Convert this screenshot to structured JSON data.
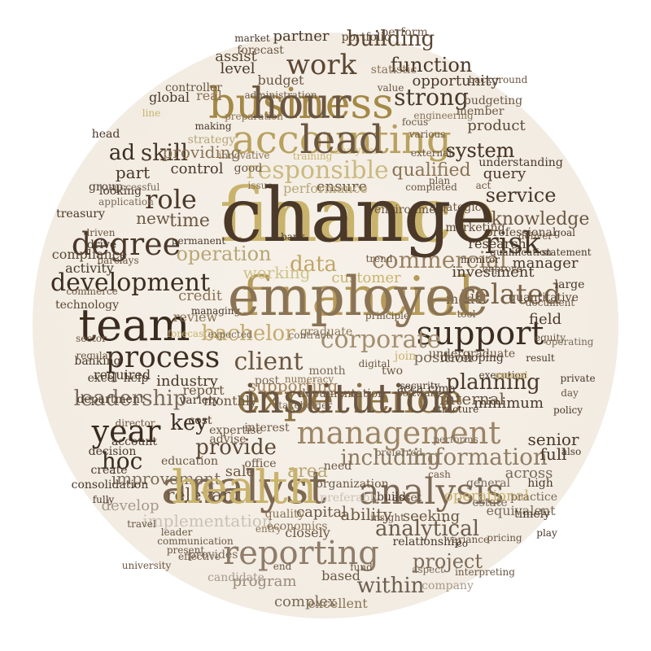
{
  "words": [
    {
      "text": "finance",
      "color": "#c9b36c"
    },
    {
      "text": "financial",
      "color": "#b59a5a"
    },
    {
      "text": "business",
      "color": "#a48945"
    },
    {
      "text": "accounting",
      "color": "#b8a15e"
    },
    {
      "text": "experience",
      "color": "#8c7346"
    },
    {
      "text": "analyst",
      "color": "#7d6850"
    },
    {
      "text": "analysis",
      "color": "#7c6a56"
    },
    {
      "text": "reporting",
      "color": "#8f7c69"
    },
    {
      "text": "management",
      "color": "#9c8466"
    },
    {
      "text": "support",
      "color": "#3b2d20"
    },
    {
      "text": "team",
      "color": "#3a2b1f"
    },
    {
      "text": "process",
      "color": "#3c2f22"
    },
    {
      "text": "degree",
      "color": "#4a3829"
    },
    {
      "text": "year",
      "color": "#3a2b1f"
    },
    {
      "text": "responsible",
      "color": "#cbb981"
    },
    {
      "text": "work",
      "color": "#5b4632"
    },
    {
      "text": "risk",
      "color": "#4a3829"
    },
    {
      "text": "role",
      "color": "#4a3829"
    },
    {
      "text": "skill",
      "color": "#4a3829"
    },
    {
      "text": "related",
      "color": "#7a6247"
    },
    {
      "text": "development",
      "color": "#3b2d20"
    },
    {
      "text": "client",
      "color": "#6b5641"
    },
    {
      "text": "corporate",
      "color": "#a38e6f"
    },
    {
      "text": "commercial",
      "color": "#9a8162"
    },
    {
      "text": "data",
      "color": "#c0a566"
    },
    {
      "text": "bachelor",
      "color": "#c3aa6e"
    },
    {
      "text": "information",
      "color": "#917d65"
    },
    {
      "text": "including",
      "color": "#8d7a60"
    },
    {
      "text": "leadership",
      "color": "#7b6a5a"
    },
    {
      "text": "planning",
      "color": "#4a3829"
    },
    {
      "text": "strong",
      "color": "#4a3829"
    },
    {
      "text": "system",
      "color": "#4a3829"
    },
    {
      "text": "service",
      "color": "#4a3829"
    },
    {
      "text": "operation",
      "color": "#b8a676"
    },
    {
      "text": "project",
      "color": "#7d6b58"
    },
    {
      "text": "within",
      "color": "#6d5e4f"
    },
    {
      "text": "analytical",
      "color": "#6d5c4a"
    },
    {
      "text": "provide",
      "color": "#5c4936"
    },
    {
      "text": "key",
      "color": "#3b2d20"
    },
    {
      "text": "hoc",
      "color": "#3b2d20"
    },
    {
      "text": "function",
      "color": "#4a3829"
    },
    {
      "text": "opportunity",
      "color": "#4a3829"
    },
    {
      "text": "building",
      "color": "#5b4632"
    },
    {
      "text": "qualified",
      "color": "#8a7354"
    },
    {
      "text": "knowledge",
      "color": "#6b5641"
    },
    {
      "text": "query",
      "color": "#4a3829"
    },
    {
      "text": "product",
      "color": "#5c4936"
    },
    {
      "text": "position",
      "color": "#7a6a57"
    },
    {
      "text": "implementation",
      "color": "#c9c1b5"
    },
    {
      "text": "program",
      "color": "#9a8a78"
    },
    {
      "text": "improvement",
      "color": "#7a6a57"
    },
    {
      "text": "relevant",
      "color": "#6b5641"
    },
    {
      "text": "internal",
      "color": "#6b5641"
    },
    {
      "text": "field",
      "color": "#4a3829"
    },
    {
      "text": "manager",
      "color": "#4a3829"
    },
    {
      "text": "minimum",
      "color": "#4a3829"
    },
    {
      "text": "supporting",
      "color": "#a3835f"
    },
    {
      "text": "providing",
      "color": "#8a7354"
    },
    {
      "text": "time",
      "color": "#6b5641"
    },
    {
      "text": "new",
      "color": "#6b5641"
    },
    {
      "text": "ad",
      "color": "#3b2d20"
    },
    {
      "text": "part",
      "color": "#4a3829"
    },
    {
      "text": "level",
      "color": "#4a3829"
    },
    {
      "text": "partner",
      "color": "#4a3829"
    },
    {
      "text": "portfolio",
      "color": "#5b4632"
    },
    {
      "text": "assist",
      "color": "#5b4632"
    },
    {
      "text": "real",
      "color": "#8a7354"
    },
    {
      "text": "forecast",
      "color": "#6b5641"
    },
    {
      "text": "global",
      "color": "#4a3829"
    },
    {
      "text": "control",
      "color": "#4a3829"
    },
    {
      "text": "ensure",
      "color": "#6b5641"
    },
    {
      "text": "full",
      "color": "#4a3829"
    },
    {
      "text": "across",
      "color": "#7a6a57"
    },
    {
      "text": "senior",
      "color": "#4a3829"
    },
    {
      "text": "complex",
      "color": "#7a6a57"
    },
    {
      "text": "company",
      "color": "#a8998a"
    },
    {
      "text": "ability",
      "color": "#6b5641"
    },
    {
      "text": "seeking",
      "color": "#6b5641"
    },
    {
      "text": "capital",
      "color": "#6b5641"
    },
    {
      "text": "closely",
      "color": "#6b5641"
    },
    {
      "text": "area",
      "color": "#b8a676"
    },
    {
      "text": "sale",
      "color": "#6b5641"
    },
    {
      "text": "credit",
      "color": "#8a7354"
    },
    {
      "text": "review",
      "color": "#8a7354"
    },
    {
      "text": "report",
      "color": "#6b5641"
    },
    {
      "text": "industry",
      "color": "#4a3829"
    },
    {
      "text": "activity",
      "color": "#4a3829"
    },
    {
      "text": "compliance",
      "color": "#5b4632"
    },
    {
      "text": "technology",
      "color": "#5b4632"
    },
    {
      "text": "working",
      "color": "#cfc28a"
    },
    {
      "text": "customer",
      "color": "#c9b36c"
    },
    {
      "text": "research",
      "color": "#4a3829"
    },
    {
      "text": "investment",
      "color": "#4a3829"
    },
    {
      "text": "model",
      "color": "#6b5641"
    },
    {
      "text": "quantitative",
      "color": "#5b4632"
    },
    {
      "text": "operational",
      "color": "#c9b36c"
    },
    {
      "text": "excellent",
      "color": "#8a7354"
    },
    {
      "text": "based",
      "color": "#6b5641"
    },
    {
      "text": "budget",
      "color": "#6b5641"
    },
    {
      "text": "administration",
      "color": "#6b5641"
    },
    {
      "text": "required",
      "color": "#4a3829"
    },
    {
      "text": "develop",
      "color": "#a8998a"
    },
    {
      "text": "account",
      "color": "#4a3829"
    },
    {
      "text": "department",
      "color": "#4a3829"
    },
    {
      "text": "treasury",
      "color": "#4a3829"
    },
    {
      "text": "graduate",
      "color": "#8a7354"
    },
    {
      "text": "strategic",
      "color": "#6b5641"
    },
    {
      "text": "economics",
      "color": "#8a7354"
    },
    {
      "text": "monthly",
      "color": "#6b5641"
    },
    {
      "text": "quality",
      "color": "#8a7354"
    },
    {
      "text": "cima",
      "color": "#4a3829"
    },
    {
      "text": "acca",
      "color": "#4a3829"
    },
    {
      "text": "equivalent",
      "color": "#7a6a57"
    },
    {
      "text": "relationship",
      "color": "#4a3829"
    },
    {
      "text": "system",
      "color": "#4a3829"
    },
    {
      "text": "performance",
      "color": "#b8a676"
    },
    {
      "text": "environment",
      "color": "#6b5641"
    },
    {
      "text": "strategy",
      "color": "#b8a676"
    },
    {
      "text": "innovative",
      "color": "#8a7354"
    },
    {
      "text": "preparation",
      "color": "#8a7354"
    },
    {
      "text": "head",
      "color": "#4a3829"
    },
    {
      "text": "drive",
      "color": "#4a3829"
    },
    {
      "text": "group",
      "color": "#4a3829"
    },
    {
      "text": "looking",
      "color": "#4a3829"
    },
    {
      "text": "making",
      "color": "#4a3829"
    },
    {
      "text": "marketing",
      "color": "#5b4632"
    },
    {
      "text": "understanding",
      "color": "#4a3829"
    },
    {
      "text": "developing",
      "color": "#4a3829"
    },
    {
      "text": "professional",
      "color": "#5b4632"
    },
    {
      "text": "large",
      "color": "#4a3829"
    },
    {
      "text": "practice",
      "color": "#7a6a57"
    },
    {
      "text": "high",
      "color": "#4a3829"
    },
    {
      "text": "timely",
      "color": "#4a3829"
    },
    {
      "text": "estate",
      "color": "#7a6a57"
    },
    {
      "text": "general",
      "color": "#7a6a57"
    },
    {
      "text": "performs",
      "color": "#7a6a57"
    },
    {
      "text": "preferred",
      "color": "#7a6a57"
    },
    {
      "text": "software",
      "color": "#6b5641"
    },
    {
      "text": "month",
      "color": "#7a6a57"
    },
    {
      "text": "numeracy",
      "color": "#8a7354"
    },
    {
      "text": "stakeholder",
      "color": "#7a6a57"
    },
    {
      "text": "post",
      "color": "#7a6a57"
    },
    {
      "text": "documentation",
      "color": "#6b5641"
    },
    {
      "text": "interest",
      "color": "#6b5641"
    },
    {
      "text": "office",
      "color": "#6b5641"
    },
    {
      "text": "advise",
      "color": "#6b5641"
    },
    {
      "text": "expertise",
      "color": "#6b5641"
    },
    {
      "text": "cost",
      "color": "#4a3829"
    },
    {
      "text": "variety",
      "color": "#4a3829"
    },
    {
      "text": "help",
      "color": "#4a3829"
    },
    {
      "text": "excel",
      "color": "#4a3829"
    },
    {
      "text": "banking",
      "color": "#4a3829"
    },
    {
      "text": "director",
      "color": "#6b5641"
    },
    {
      "text": "decision",
      "color": "#4a3829"
    },
    {
      "text": "education",
      "color": "#6b5641"
    },
    {
      "text": "create",
      "color": "#4a3829"
    },
    {
      "text": "consolidation",
      "color": "#4a3829"
    },
    {
      "text": "communication",
      "color": "#6b5641"
    },
    {
      "text": "effective",
      "color": "#6b5641"
    },
    {
      "text": "present",
      "color": "#6b5641"
    },
    {
      "text": "provides",
      "color": "#7a6a57"
    },
    {
      "text": "candidate",
      "color": "#a8998a"
    },
    {
      "text": "preferably",
      "color": "#c9c1b5"
    },
    {
      "text": "organization",
      "color": "#6b5641"
    },
    {
      "text": "need",
      "color": "#6b5641"
    },
    {
      "text": "asset",
      "color": "#6b5641"
    },
    {
      "text": "insight",
      "color": "#6b5641"
    },
    {
      "text": "build",
      "color": "#4a3829"
    },
    {
      "text": "two",
      "color": "#6b5641"
    },
    {
      "text": "join",
      "color": "#c9b36c"
    },
    {
      "text": "undergraduate",
      "color": "#6b5641"
    },
    {
      "text": "execution",
      "color": "#4a3829"
    },
    {
      "text": "policy",
      "color": "#4a3829"
    },
    {
      "text": "private",
      "color": "#4a3829"
    },
    {
      "text": "result",
      "color": "#4a3829"
    },
    {
      "text": "market",
      "color": "#4a3829"
    },
    {
      "text": "statistic",
      "color": "#8a7354"
    },
    {
      "text": "perform",
      "color": "#6b5641"
    },
    {
      "text": "value",
      "color": "#6b5641"
    },
    {
      "text": "focus",
      "color": "#6b5641"
    },
    {
      "text": "various",
      "color": "#6b5641"
    },
    {
      "text": "member",
      "color": "#6b5641"
    },
    {
      "text": "background",
      "color": "#6b5641"
    },
    {
      "text": "engineering",
      "color": "#8a7354"
    },
    {
      "text": "budgeting",
      "color": "#6b5641"
    },
    {
      "text": "controller",
      "color": "#6b5641"
    },
    {
      "text": "good",
      "color": "#6b5641"
    },
    {
      "text": "issue",
      "color": "#8a7354"
    },
    {
      "text": "training",
      "color": "#c9b36c"
    },
    {
      "text": "analytics",
      "color": "#c9b36c"
    },
    {
      "text": "external",
      "color": "#6b5641"
    },
    {
      "text": "completed",
      "color": "#6b5641"
    },
    {
      "text": "plan",
      "color": "#6b5641"
    },
    {
      "text": "act",
      "color": "#6b5641"
    },
    {
      "text": "driven",
      "color": "#6b5641"
    },
    {
      "text": "barclays",
      "color": "#6b5641"
    },
    {
      "text": "permanent",
      "color": "#4a3829"
    },
    {
      "text": "managing",
      "color": "#4a3829"
    },
    {
      "text": "forecasting",
      "color": "#c9b36c"
    },
    {
      "text": "trend",
      "color": "#6b5641"
    },
    {
      "text": "commerce",
      "color": "#6b5641"
    },
    {
      "text": "annual",
      "color": "#c9b36c"
    },
    {
      "text": "statement",
      "color": "#4a3829"
    },
    {
      "text": "goal",
      "color": "#4a3829"
    },
    {
      "text": "monitor",
      "color": "#4a3829"
    },
    {
      "text": "improve",
      "color": "#6b5641"
    },
    {
      "text": "qualification",
      "color": "#4a3829"
    },
    {
      "text": "deliver",
      "color": "#6b5641"
    },
    {
      "text": "document",
      "color": "#6b5641"
    },
    {
      "text": "equity",
      "color": "#6b5641"
    },
    {
      "text": "digital",
      "color": "#6b5641"
    },
    {
      "text": "tool",
      "color": "#6b5641"
    },
    {
      "text": "day",
      "color": "#6b5641"
    },
    {
      "text": "leader",
      "color": "#6b5641"
    },
    {
      "text": "entry",
      "color": "#8a7354"
    },
    {
      "text": "end",
      "color": "#6b5641"
    },
    {
      "text": "fully",
      "color": "#4a3829"
    },
    {
      "text": "regular",
      "color": "#6b5641"
    },
    {
      "text": "sector",
      "color": "#6b5641"
    },
    {
      "text": "university",
      "color": "#6b5641"
    },
    {
      "text": "travel",
      "color": "#6b5641"
    },
    {
      "text": "security",
      "color": "#4a3829"
    },
    {
      "text": "structure",
      "color": "#4a3829"
    },
    {
      "text": "also",
      "color": "#4a3829"
    },
    {
      "text": "play",
      "color": "#4a3829"
    },
    {
      "text": "cash",
      "color": "#6b5641"
    },
    {
      "text": "variance",
      "color": "#6b5641"
    },
    {
      "text": "co",
      "color": "#4a3829"
    },
    {
      "text": "pricing",
      "color": "#6b5641"
    },
    {
      "text": "interpreting",
      "color": "#6b5641"
    },
    {
      "text": "aspect",
      "color": "#7a6a57"
    },
    {
      "text": "fund",
      "color": "#6b5641"
    },
    {
      "text": "operating",
      "color": "#7a6a57"
    },
    {
      "text": "application",
      "color": "#7a6a57"
    },
    {
      "text": "successful",
      "color": "#7a6a57"
    },
    {
      "text": "line",
      "color": "#c9b36c"
    },
    {
      "text": "expected",
      "color": "#7a6a57"
    },
    {
      "text": "contract",
      "color": "#7a6a57"
    },
    {
      "text": "principle",
      "color": "#6b5641"
    },
    {
      "text": "bank",
      "color": "#4a3829"
    },
    {
      "text": "change",
      "color": "#4a3829"
    },
    {
      "text": "employee",
      "color": "#8a7354"
    },
    {
      "text": "hour",
      "color": "#6b5641"
    },
    {
      "text": "lead",
      "color": "#6b5641"
    },
    {
      "text": "institution",
      "color": "#6b5641"
    },
    {
      "text": "health",
      "color": "#c9b36c"
    }
  ]
}
